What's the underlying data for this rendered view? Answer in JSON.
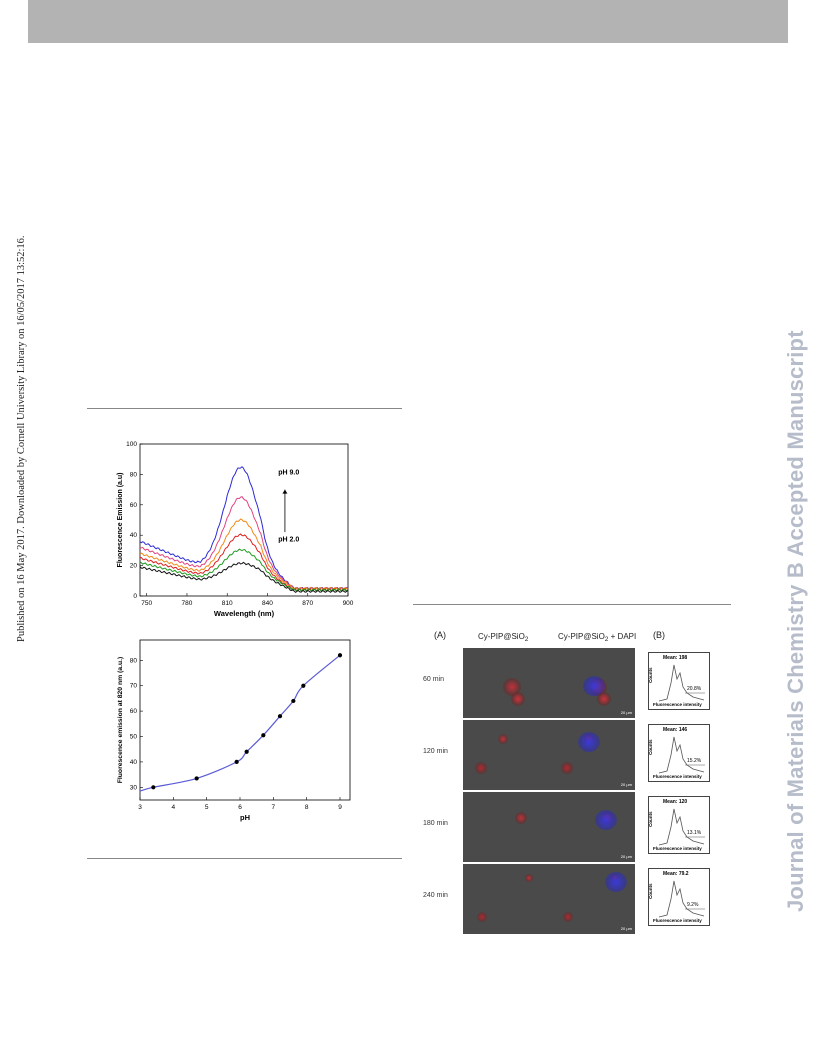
{
  "side_left_text": "Published on 16 May 2017. Downloaded by Cornell University Library on 16/05/2017 13:52:16.",
  "side_right_text": "Journal of Materials Chemistry B Accepted Manuscript",
  "figure_top": {
    "chart_data": {
      "type": "line",
      "xlabel": "Wavelength (nm)",
      "ylabel": "Fluorescence Emission (a.u)",
      "xlim": [
        745,
        900
      ],
      "ylim": [
        0,
        100
      ],
      "xticks": [
        750,
        780,
        810,
        840,
        870,
        900
      ],
      "yticks": [
        0,
        20,
        40,
        60,
        80,
        100
      ],
      "annotations": [
        "pH 9.0",
        "pH 2.0"
      ],
      "series": [
        {
          "color": "#2b2bd6",
          "peak": 85,
          "base_left": 36,
          "tail": 5
        },
        {
          "color": "#e0437f",
          "peak": 65,
          "base_left": 32,
          "tail": 5
        },
        {
          "color": "#f08a1a",
          "peak": 50,
          "base_left": 28,
          "tail": 5
        },
        {
          "color": "#e02020",
          "peak": 40,
          "base_left": 25,
          "tail": 4
        },
        {
          "color": "#1f9a1f",
          "peak": 30,
          "base_left": 22,
          "tail": 4
        },
        {
          "color": "#111111",
          "peak": 21,
          "base_left": 19,
          "tail": 3
        }
      ]
    }
  },
  "figure_bottom": {
    "chart_data": {
      "type": "scatter",
      "xlabel": "pH",
      "ylabel": "Fluorescence emission at 820 nm (a.u.)",
      "xlim": [
        3,
        9.3
      ],
      "ylim": [
        25,
        88
      ],
      "xticks": [
        3,
        4,
        5,
        6,
        7,
        8,
        9
      ],
      "yticks": [
        30,
        40,
        50,
        60,
        70,
        80
      ],
      "x": [
        3.4,
        4.7,
        5.9,
        6.2,
        6.7,
        7.2,
        7.6,
        7.9,
        9.0
      ],
      "y": [
        30,
        33.5,
        40,
        44,
        50.5,
        58,
        64,
        70,
        82
      ],
      "fit_color": "#5b5bd6"
    }
  },
  "figure_right": {
    "label_a": "(A)",
    "label_b": "(B)",
    "col1_title": "Cy-PIP@SiO",
    "col1_sub": "2",
    "col2_title": "Cy-PIP@SiO",
    "col2_sub": "2",
    "col2_suffix": " + DAPI",
    "scale_label": "20 μm",
    "rows": [
      {
        "time": "60 min",
        "mean": "Mean: 198",
        "percent": "20.8%"
      },
      {
        "time": "120 min",
        "mean": "Mean: 146",
        "percent": "15.2%"
      },
      {
        "time": "180 min",
        "mean": "Mean: 120",
        "percent": "13.1%"
      },
      {
        "time": "240 min",
        "mean": "Mean: 79.2",
        "percent": "9.2%"
      }
    ],
    "flow_ylabel": "Counts",
    "flow_xlabel": "Fluorescence intensity"
  }
}
